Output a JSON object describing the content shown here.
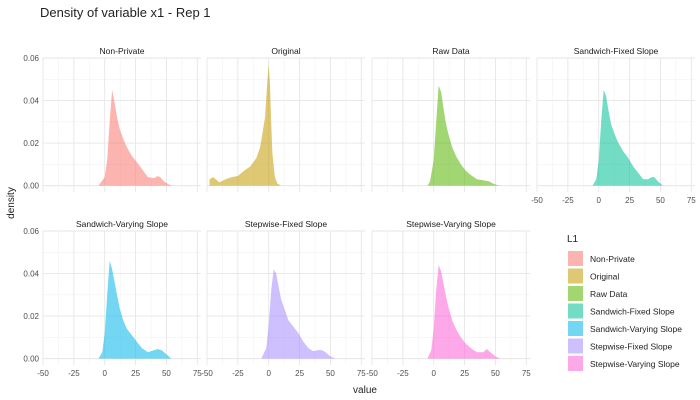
{
  "chart_data": {
    "type": "area",
    "title": "Density of variable x1 - Rep 1",
    "xlabel": "value",
    "ylabel": "density",
    "xlim": [
      -50,
      78
    ],
    "ylim": [
      -0.003,
      0.06
    ],
    "x_ticks": [
      "-50",
      "-25",
      "0",
      "25",
      "50",
      "75"
    ],
    "y_ticks": [
      "0.00",
      "0.02",
      "0.04",
      "0.06"
    ],
    "grid": true,
    "fill_opacity": 0.55,
    "legend": {
      "title": "L1",
      "placement": "right"
    },
    "panels": [
      {
        "name": "Non-Private",
        "color": "#F8766D",
        "x": [
          -5,
          0,
          2,
          4,
          6,
          8,
          10,
          12,
          15,
          18,
          22,
          26,
          30,
          35,
          40,
          43,
          45,
          48,
          52,
          55
        ],
        "y": [
          0,
          0.004,
          0.012,
          0.03,
          0.045,
          0.039,
          0.032,
          0.027,
          0.022,
          0.018,
          0.014,
          0.011,
          0.008,
          0.004,
          0.0035,
          0.0045,
          0.004,
          0.002,
          0.0005,
          0
        ]
      },
      {
        "name": "Original",
        "color": "#C49A00",
        "x": [
          -48,
          -45,
          -40,
          -35,
          -30,
          -25,
          -20,
          -15,
          -10,
          -7,
          -5,
          -3,
          -1,
          0,
          1,
          2,
          3,
          5,
          7,
          10
        ],
        "y": [
          0.003,
          0.004,
          0.0015,
          0.003,
          0.004,
          0.0045,
          0.007,
          0.009,
          0.013,
          0.018,
          0.025,
          0.032,
          0.05,
          0.057,
          0.048,
          0.03,
          0.015,
          0.004,
          0.001,
          0
        ]
      },
      {
        "name": "Raw Data",
        "color": "#53B400",
        "x": [
          -5,
          -3,
          0,
          2,
          4,
          6,
          8,
          10,
          12,
          15,
          18,
          22,
          26,
          30,
          35,
          40,
          45,
          48,
          52,
          55
        ],
        "y": [
          0,
          0.002,
          0.012,
          0.03,
          0.047,
          0.044,
          0.036,
          0.029,
          0.024,
          0.018,
          0.014,
          0.01,
          0.007,
          0.005,
          0.003,
          0.0025,
          0.002,
          0.001,
          0.0002,
          0
        ]
      },
      {
        "name": "Sandwich-Fixed Slope",
        "color": "#00C094",
        "x": [
          -5,
          -2,
          0,
          2,
          4,
          6,
          8,
          10,
          13,
          16,
          20,
          24,
          28,
          32,
          36,
          40,
          43,
          45,
          48,
          52
        ],
        "y": [
          0,
          0.003,
          0.012,
          0.03,
          0.045,
          0.042,
          0.035,
          0.029,
          0.024,
          0.02,
          0.016,
          0.013,
          0.009,
          0.006,
          0.003,
          0.003,
          0.004,
          0.004,
          0.002,
          0
        ]
      },
      {
        "name": "Sandwich-Varying Slope",
        "color": "#00B6EB",
        "x": [
          -5,
          -2,
          0,
          2,
          4,
          6,
          8,
          10,
          12,
          15,
          18,
          22,
          26,
          30,
          35,
          40,
          43,
          46,
          50,
          54
        ],
        "y": [
          0,
          0.003,
          0.012,
          0.03,
          0.046,
          0.042,
          0.036,
          0.03,
          0.024,
          0.018,
          0.014,
          0.011,
          0.008,
          0.005,
          0.003,
          0.004,
          0.0045,
          0.004,
          0.002,
          0
        ]
      },
      {
        "name": "Stepwise-Fixed Slope",
        "color": "#A58AFF",
        "x": [
          -6,
          -2,
          0,
          2,
          4,
          6,
          8,
          10,
          13,
          16,
          20,
          24,
          28,
          32,
          36,
          40,
          43,
          46,
          50,
          54
        ],
        "y": [
          0,
          0.005,
          0.016,
          0.032,
          0.042,
          0.04,
          0.034,
          0.028,
          0.023,
          0.018,
          0.015,
          0.012,
          0.008,
          0.005,
          0.0035,
          0.004,
          0.004,
          0.003,
          0.001,
          0
        ]
      },
      {
        "name": "Stepwise-Varying Slope",
        "color": "#FB61D7",
        "x": [
          -5,
          -2,
          0,
          2,
          4,
          6,
          8,
          10,
          12,
          15,
          18,
          22,
          26,
          30,
          35,
          40,
          43,
          46,
          50,
          54
        ],
        "y": [
          0,
          0.004,
          0.014,
          0.032,
          0.044,
          0.041,
          0.035,
          0.029,
          0.024,
          0.018,
          0.014,
          0.01,
          0.007,
          0.005,
          0.003,
          0.003,
          0.0045,
          0.003,
          0.001,
          0
        ]
      }
    ]
  }
}
